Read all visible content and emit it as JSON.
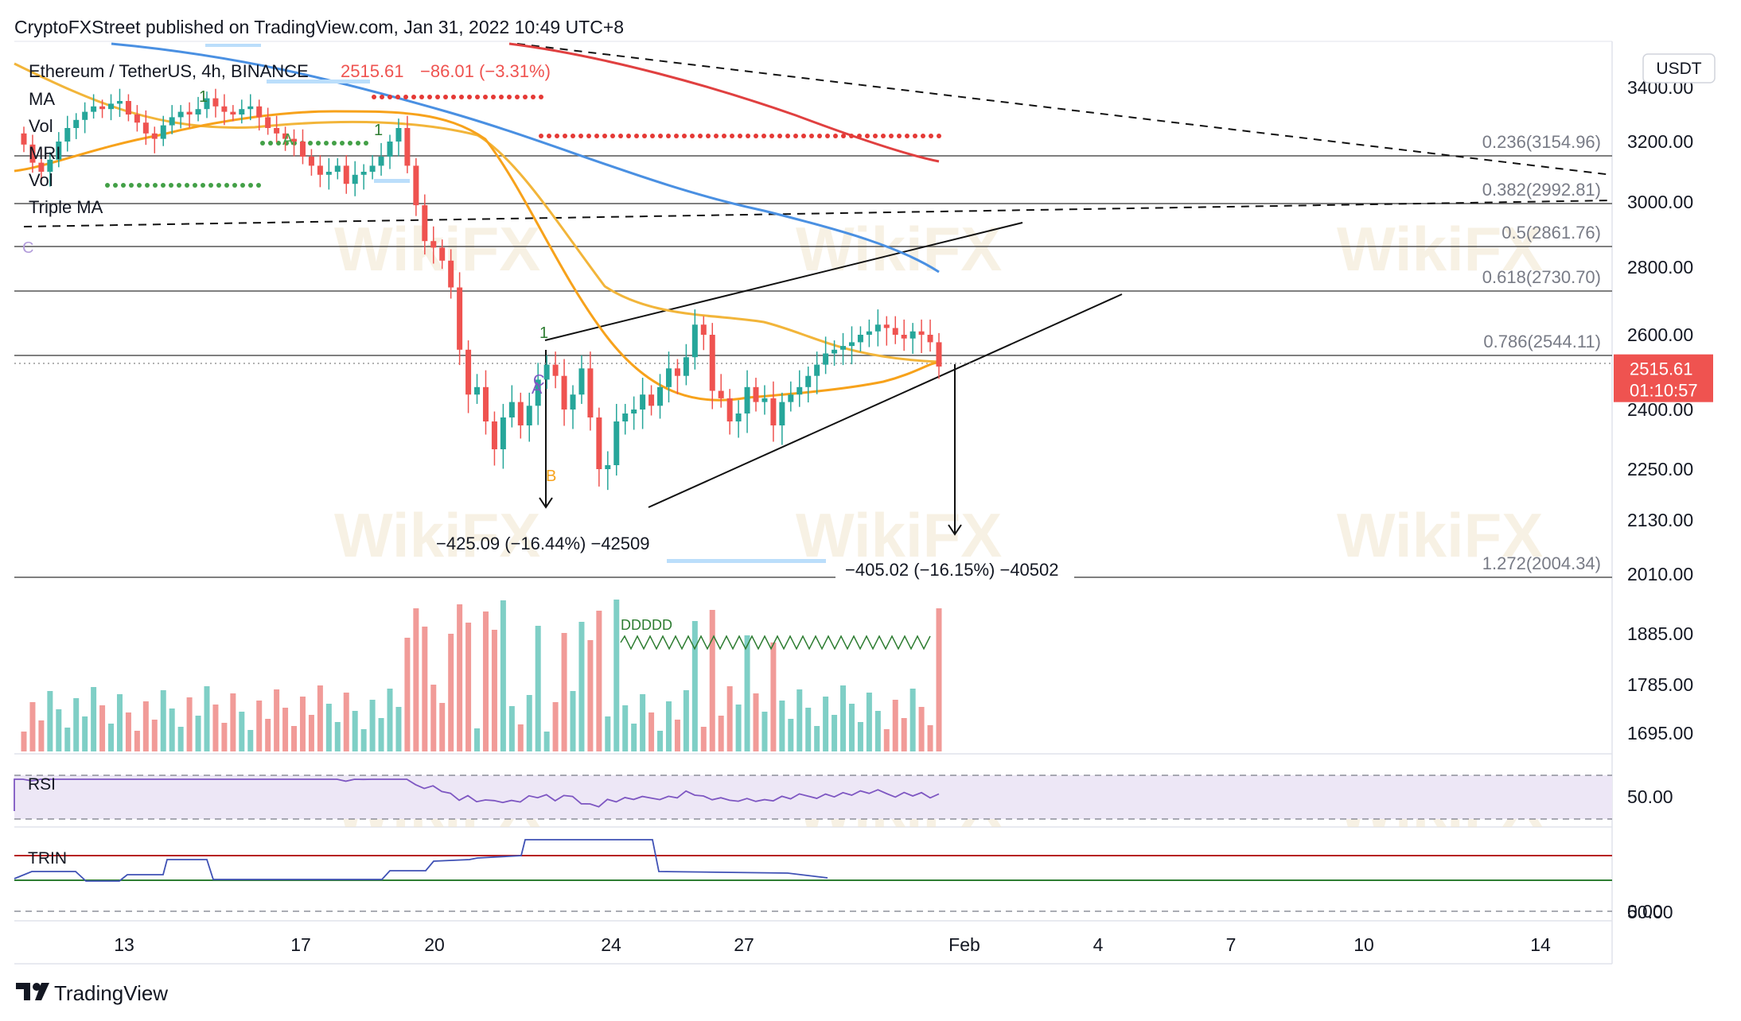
{
  "header": {
    "publisher_line": "CryptoFXStreet published on TradingView.com, Jan 31, 2022 10:49 UTC+8"
  },
  "symbol": {
    "title": "Ethereum / TetherUS, 4h, BINANCE",
    "price": "2515.61",
    "change": "−86.01 (−3.31%)"
  },
  "indicators": [
    "MA",
    "Vol",
    "MRI",
    "Vol",
    "Triple MA"
  ],
  "currency_button": "USDT",
  "price_tag": {
    "price": "2515.61",
    "countdown": "01:10:57"
  },
  "colors": {
    "up": "#26a69a",
    "down": "#ef5350",
    "ma_orange": "#f7a21b",
    "ma_yellow": "#f2b53a",
    "ma_blue": "#4a90e2",
    "ma_red": "#e04040",
    "rsi": "#7e57c2",
    "trin_blue": "#3f51b5",
    "trin_red": "#b71c1c",
    "trin_green": "#2e7d32"
  },
  "bottom_brand": "TradingView",
  "watermark": "WikiFX",
  "chart_data": {
    "type": "candlestick",
    "symbol": "ETHUSDT",
    "timeframe": "4h",
    "y_axis_ticks": [
      "3400.00",
      "3200.00",
      "3000.00",
      "2800.00",
      "2600.00",
      "2400.00",
      "2250.00",
      "2130.00",
      "2010.00",
      "1885.00",
      "1785.00",
      "1695.00"
    ],
    "x_axis_ticks": [
      "13",
      "17",
      "20",
      "24",
      "27",
      "Feb",
      "4",
      "7",
      "10",
      "14"
    ],
    "fib_levels": [
      {
        "label": "0.236(3154.96)",
        "value": 3154.96
      },
      {
        "label": "0.382(2992.81)",
        "value": 2992.81
      },
      {
        "label": "0.5(2861.76)",
        "value": 2861.76
      },
      {
        "label": "0.618(2730.70)",
        "value": 2730.7
      },
      {
        "label": "0.786(2544.11)",
        "value": 2544.11
      },
      {
        "label": "1.272(2004.34)",
        "value": 2004.34
      }
    ],
    "annotations": [
      {
        "text": "−425.09 (−16.44%) −42509"
      },
      {
        "text": "−405.02 (−16.15%) −40502"
      }
    ],
    "markers": [
      "1",
      "1",
      "1",
      "A",
      "A",
      "B",
      "C",
      "C",
      "DDDDD"
    ],
    "rsi": {
      "label": "RSI",
      "level": "50.00"
    },
    "trin": {
      "label": "TRIN",
      "level": "0.00"
    },
    "closes": [
      3190,
      3130,
      3100,
      3140,
      3200,
      3250,
      3280,
      3310,
      3330,
      3320,
      3340,
      3350,
      3300,
      3270,
      3230,
      3210,
      3260,
      3290,
      3310,
      3300,
      3320,
      3360,
      3330,
      3310,
      3300,
      3320,
      3330,
      3290,
      3250,
      3230,
      3210,
      3200,
      3150,
      3120,
      3090,
      3100,
      3120,
      3060,
      3090,
      3100,
      3120,
      3150,
      3200,
      3250,
      3120,
      2990,
      2880,
      2860,
      2820,
      2740,
      2560,
      2440,
      2460,
      2370,
      2300,
      2380,
      2420,
      2360,
      2410,
      2480,
      2520,
      2490,
      2400,
      2440,
      2510,
      2380,
      2250,
      2260,
      2370,
      2390,
      2400,
      2440,
      2410,
      2460,
      2510,
      2490,
      2540,
      2630,
      2600,
      2450,
      2430,
      2370,
      2390,
      2460,
      2420,
      2430,
      2360,
      2420,
      2440,
      2460,
      2490,
      2520,
      2550,
      2560,
      2570,
      2580,
      2600,
      2610,
      2630,
      2620,
      2600,
      2590,
      2610,
      2600,
      2580,
      2515
    ]
  }
}
